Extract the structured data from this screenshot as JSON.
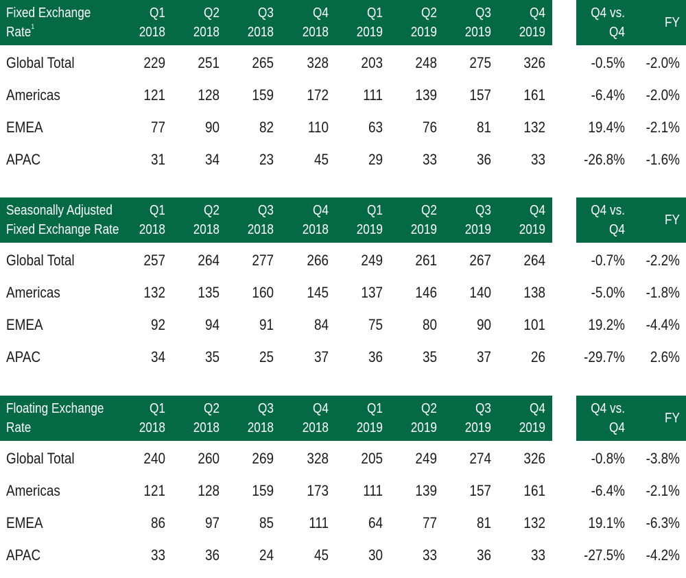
{
  "tables": [
    {
      "title_line1": "Fixed Exchange",
      "title_line2": "Rate",
      "title_sup": "1",
      "periods": [
        {
          "q": "Q1",
          "y": "2018"
        },
        {
          "q": "Q2",
          "y": "2018"
        },
        {
          "q": "Q3",
          "y": "2018"
        },
        {
          "q": "Q4",
          "y": "2018"
        },
        {
          "q": "Q1",
          "y": "2019"
        },
        {
          "q": "Q2",
          "y": "2019"
        },
        {
          "q": "Q3",
          "y": "2019"
        },
        {
          "q": "Q4",
          "y": "2019"
        }
      ],
      "change_header_line1": "Q4 vs.",
      "change_header_line2": "Q4",
      "fy_header": "FY",
      "rows": [
        {
          "label": "Global Total",
          "values": [
            "229",
            "251",
            "265",
            "328",
            "203",
            "248",
            "275",
            "326"
          ],
          "q4_change": "-0.5%",
          "fy_change": "-2.0%"
        },
        {
          "label": "Americas",
          "values": [
            "121",
            "128",
            "159",
            "172",
            "111",
            "139",
            "157",
            "161"
          ],
          "q4_change": "-6.4%",
          "fy_change": "-2.0%"
        },
        {
          "label": "EMEA",
          "values": [
            "77",
            "90",
            "82",
            "110",
            "63",
            "76",
            "81",
            "132"
          ],
          "q4_change": "19.4%",
          "fy_change": "-2.1%"
        },
        {
          "label": "APAC",
          "values": [
            "31",
            "34",
            "23",
            "45",
            "29",
            "33",
            "36",
            "33"
          ],
          "q4_change": "-26.8%",
          "fy_change": "-1.6%"
        }
      ]
    },
    {
      "title_line1": "Seasonally Adjusted",
      "title_line2": "Fixed Exchange Rate",
      "title_sup": "",
      "periods": [
        {
          "q": "Q1",
          "y": "2018"
        },
        {
          "q": "Q2",
          "y": "2018"
        },
        {
          "q": "Q3",
          "y": "2018"
        },
        {
          "q": "Q4",
          "y": "2018"
        },
        {
          "q": "Q1",
          "y": "2019"
        },
        {
          "q": "Q2",
          "y": "2019"
        },
        {
          "q": "Q3",
          "y": "2019"
        },
        {
          "q": "Q4",
          "y": "2019"
        }
      ],
      "change_header_line1": "Q4 vs.",
      "change_header_line2": "Q4",
      "fy_header": "FY",
      "rows": [
        {
          "label": "Global Total",
          "values": [
            "257",
            "264",
            "277",
            "266",
            "249",
            "261",
            "267",
            "264"
          ],
          "q4_change": "-0.7%",
          "fy_change": "-2.2%"
        },
        {
          "label": "Americas",
          "values": [
            "132",
            "135",
            "160",
            "145",
            "137",
            "146",
            "140",
            "138"
          ],
          "q4_change": "-5.0%",
          "fy_change": "-1.8%"
        },
        {
          "label": "EMEA",
          "values": [
            "92",
            "94",
            "91",
            "84",
            "75",
            "80",
            "90",
            "101"
          ],
          "q4_change": "19.2%",
          "fy_change": "-4.4%"
        },
        {
          "label": "APAC",
          "values": [
            "34",
            "35",
            "25",
            "37",
            "36",
            "35",
            "37",
            "26"
          ],
          "q4_change": "-29.7%",
          "fy_change": "2.6%"
        }
      ]
    },
    {
      "title_line1": "Floating Exchange",
      "title_line2": "Rate",
      "title_sup": "",
      "periods": [
        {
          "q": "Q1",
          "y": "2018"
        },
        {
          "q": "Q2",
          "y": "2018"
        },
        {
          "q": "Q3",
          "y": "2018"
        },
        {
          "q": "Q4",
          "y": "2018"
        },
        {
          "q": "Q1",
          "y": "2019"
        },
        {
          "q": "Q2",
          "y": "2019"
        },
        {
          "q": "Q3",
          "y": "2019"
        },
        {
          "q": "Q4",
          "y": "2019"
        }
      ],
      "change_header_line1": "Q4 vs.",
      "change_header_line2": "Q4",
      "fy_header": "FY",
      "rows": [
        {
          "label": "Global Total",
          "values": [
            "240",
            "260",
            "269",
            "328",
            "205",
            "249",
            "274",
            "326"
          ],
          "q4_change": "-0.8%",
          "fy_change": "-3.8%"
        },
        {
          "label": "Americas",
          "values": [
            "121",
            "128",
            "159",
            "173",
            "111",
            "139",
            "157",
            "161"
          ],
          "q4_change": "-6.4%",
          "fy_change": "-2.1%"
        },
        {
          "label": "EMEA",
          "values": [
            "86",
            "97",
            "85",
            "111",
            "64",
            "77",
            "81",
            "132"
          ],
          "q4_change": "19.1%",
          "fy_change": "-6.3%"
        },
        {
          "label": "APAC",
          "values": [
            "33",
            "36",
            "24",
            "45",
            "30",
            "33",
            "36",
            "33"
          ],
          "q4_change": "-27.5%",
          "fy_change": "-4.2%"
        }
      ]
    }
  ],
  "colors": {
    "header_bg": "#046a45",
    "header_text": "#ffffff",
    "body_text": "#1a1a1a"
  }
}
